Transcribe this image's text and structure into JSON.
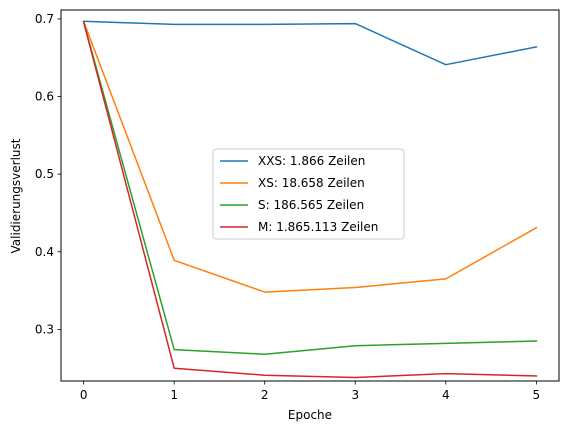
{
  "chart_data": {
    "type": "line",
    "title": "",
    "xlabel": "Epoche",
    "ylabel": "Validierungsverlust",
    "x": [
      0,
      1,
      2,
      3,
      4,
      5
    ],
    "xticks": [
      "0",
      "1",
      "2",
      "3",
      "4",
      "5"
    ],
    "yticks": [
      "0.3",
      "0.4",
      "0.5",
      "0.6",
      "0.7"
    ],
    "xlim": [
      -0.25,
      5.25
    ],
    "ylim": [
      0.2335,
      0.7115
    ],
    "grid": false,
    "legend_position": "center-right",
    "series": [
      {
        "name": "XXS: 1.866 Zeilen",
        "color": "#1f77b4",
        "values": [
          0.697,
          0.693,
          0.693,
          0.694,
          0.641,
          0.664
        ]
      },
      {
        "name": "XS: 18.658 Zeilen",
        "color": "#ff7f0e",
        "values": [
          0.697,
          0.389,
          0.348,
          0.354,
          0.365,
          0.431
        ]
      },
      {
        "name": "S: 186.565 Zeilen",
        "color": "#2ca02c",
        "values": [
          0.696,
          0.274,
          0.268,
          0.279,
          0.282,
          0.285
        ]
      },
      {
        "name": "M: 1.865.113 Zeilen",
        "color": "#d62728",
        "values": [
          0.696,
          0.25,
          0.241,
          0.238,
          0.243,
          0.24
        ]
      }
    ]
  }
}
